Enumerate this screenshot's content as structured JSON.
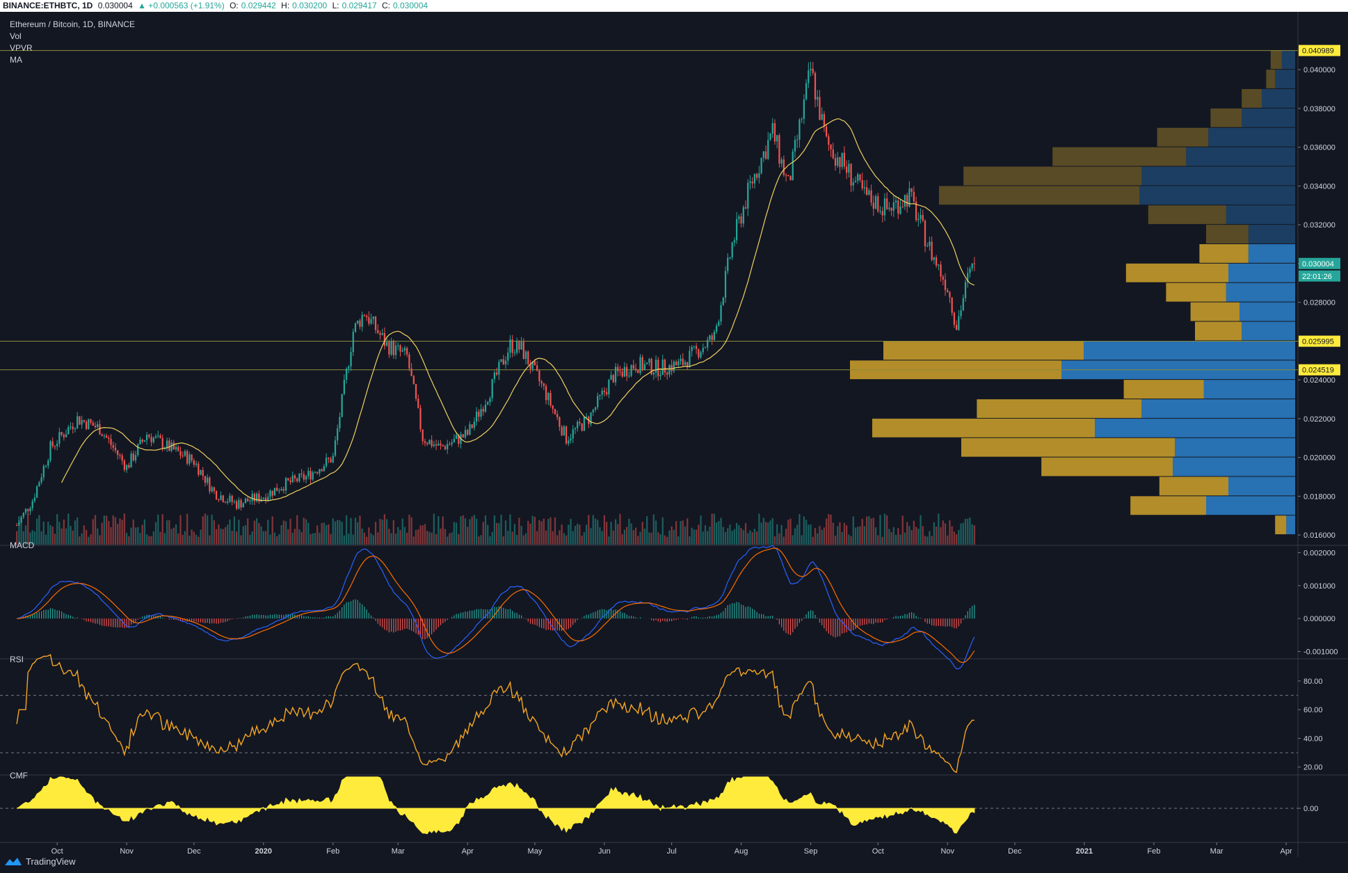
{
  "header": {
    "symbol": "BINANCE:ETHBTC, 1D",
    "last": "0.030004",
    "change": "▲ +0.000563 (+1.91%)",
    "open_label": "O:",
    "open": "0.029442",
    "high_label": "H:",
    "high": "0.030200",
    "low_label": "L:",
    "low": "0.029417",
    "close_label": "C:",
    "close": "0.030004"
  },
  "legend": {
    "title": "Ethereum / Bitcoin, 1D, BINANCE",
    "indicators": [
      "Vol",
      "VPVR",
      "MA"
    ]
  },
  "panes": {
    "macd": "MACD",
    "rsi": "RSI",
    "cmf": "CMF"
  },
  "badges": {
    "high_line": "0.040989",
    "last_price": "0.030004",
    "countdown": "22:01:26",
    "level_1": "0.025995",
    "level_2": "0.024519"
  },
  "colors": {
    "background": "#131722",
    "up": "#26a69a",
    "down": "#ef5350",
    "ma": "#f0d060",
    "macd_line": "#2962ff",
    "signal_line": "#ff6d00",
    "rsi_line": "#f5a623",
    "cmf_fill": "#ffeb3b",
    "vpvr_buy": "#2b7bc2",
    "vpvr_sell": "#c49a2a",
    "level_badge": "#ffeb3b",
    "last_badge": "#26a69a"
  },
  "brand": "TradingView",
  "chart_data": [
    {
      "type": "candlestick",
      "title": "Ethereum / Bitcoin, 1D, BINANCE",
      "x_ticks": [
        "Oct",
        "Nov",
        "Dec",
        "2020",
        "Feb",
        "Mar",
        "Apr",
        "May",
        "Jun",
        "Jul",
        "Aug",
        "Sep",
        "Oct",
        "Nov",
        "Dec",
        "2021",
        "Feb",
        "Mar",
        "Apr"
      ],
      "y_ticks": [
        "0.040000",
        "0.038000",
        "0.036000",
        "0.034000",
        "0.032000",
        "0.030000",
        "0.028000",
        "0.026000",
        "0.024000",
        "0.022000",
        "0.020000",
        "0.018000",
        "0.016000"
      ],
      "ylim": [
        0.0155,
        0.0418
      ],
      "horizontal_levels": [
        0.040989,
        0.025995,
        0.024519
      ],
      "last_price": 0.030004,
      "close_path": {
        "x": [
          "2019-09-13",
          "2019-09-20",
          "2019-09-28",
          "2019-10-10",
          "2019-10-20",
          "2019-11-01",
          "2019-11-10",
          "2019-11-20",
          "2019-12-01",
          "2019-12-10",
          "2019-12-20",
          "2020-01-01",
          "2020-01-10",
          "2020-01-20",
          "2020-02-01",
          "2020-02-10",
          "2020-02-15",
          "2020-02-25",
          "2020-03-05",
          "2020-03-12",
          "2020-03-20",
          "2020-04-01",
          "2020-04-10",
          "2020-04-20",
          "2020-04-25",
          "2020-05-05",
          "2020-05-15",
          "2020-05-25",
          "2020-06-05",
          "2020-06-15",
          "2020-06-25",
          "2020-07-05",
          "2020-07-20",
          "2020-07-28",
          "2020-08-05",
          "2020-08-15",
          "2020-08-22",
          "2020-09-01",
          "2020-09-08",
          "2020-09-15",
          "2020-09-25",
          "2020-10-05",
          "2020-10-15",
          "2020-10-25",
          "2020-11-01",
          "2020-11-05",
          "2020-11-10",
          "2020-11-13"
        ],
        "close": [
          0.0165,
          0.0178,
          0.0205,
          0.022,
          0.0215,
          0.0195,
          0.0212,
          0.0205,
          0.0198,
          0.0182,
          0.0176,
          0.018,
          0.0186,
          0.019,
          0.02,
          0.0265,
          0.0275,
          0.0258,
          0.0252,
          0.021,
          0.0205,
          0.0212,
          0.0232,
          0.0258,
          0.0256,
          0.0235,
          0.021,
          0.022,
          0.0242,
          0.0248,
          0.0246,
          0.0248,
          0.0262,
          0.031,
          0.034,
          0.0368,
          0.034,
          0.04,
          0.0362,
          0.0352,
          0.0335,
          0.0328,
          0.0335,
          0.0305,
          0.0288,
          0.0268,
          0.0292,
          0.03
        ]
      },
      "volume_profile": {
        "price_bins": [
          0.0405,
          0.0395,
          0.0385,
          0.0375,
          0.0365,
          0.0355,
          0.0345,
          0.0335,
          0.0325,
          0.0315,
          0.0305,
          0.0295,
          0.0285,
          0.0275,
          0.0265,
          0.0255,
          0.0245,
          0.0235,
          0.0225,
          0.0215,
          0.0205,
          0.0195,
          0.0185,
          0.0175,
          0.0165
        ],
        "buy": [
          12,
          18,
          30,
          48,
          78,
          98,
          138,
          140,
          62,
          42,
          42,
          60,
          62,
          50,
          48,
          190,
          210,
          82,
          138,
          180,
          108,
          110,
          60,
          80,
          8
        ],
        "sell": [
          10,
          8,
          18,
          28,
          46,
          120,
          160,
          180,
          70,
          38,
          44,
          92,
          54,
          44,
          42,
          180,
          190,
          72,
          148,
          200,
          192,
          118,
          62,
          68,
          10
        ]
      }
    },
    {
      "type": "line",
      "title": "MACD",
      "y_ticks": [
        "0.002000",
        "0.001000",
        "0.000000",
        "-0.001000"
      ],
      "ylim": [
        -0.0012,
        0.0022
      ]
    },
    {
      "type": "line",
      "title": "RSI",
      "y_ticks": [
        "80.00",
        "60.00",
        "40.00",
        "20.00"
      ],
      "ylim": [
        15,
        95
      ],
      "bands": [
        70,
        30
      ]
    },
    {
      "type": "area",
      "title": "CMF",
      "y_ticks": [
        "0.00"
      ],
      "ylim": [
        -0.25,
        0.25
      ]
    }
  ]
}
